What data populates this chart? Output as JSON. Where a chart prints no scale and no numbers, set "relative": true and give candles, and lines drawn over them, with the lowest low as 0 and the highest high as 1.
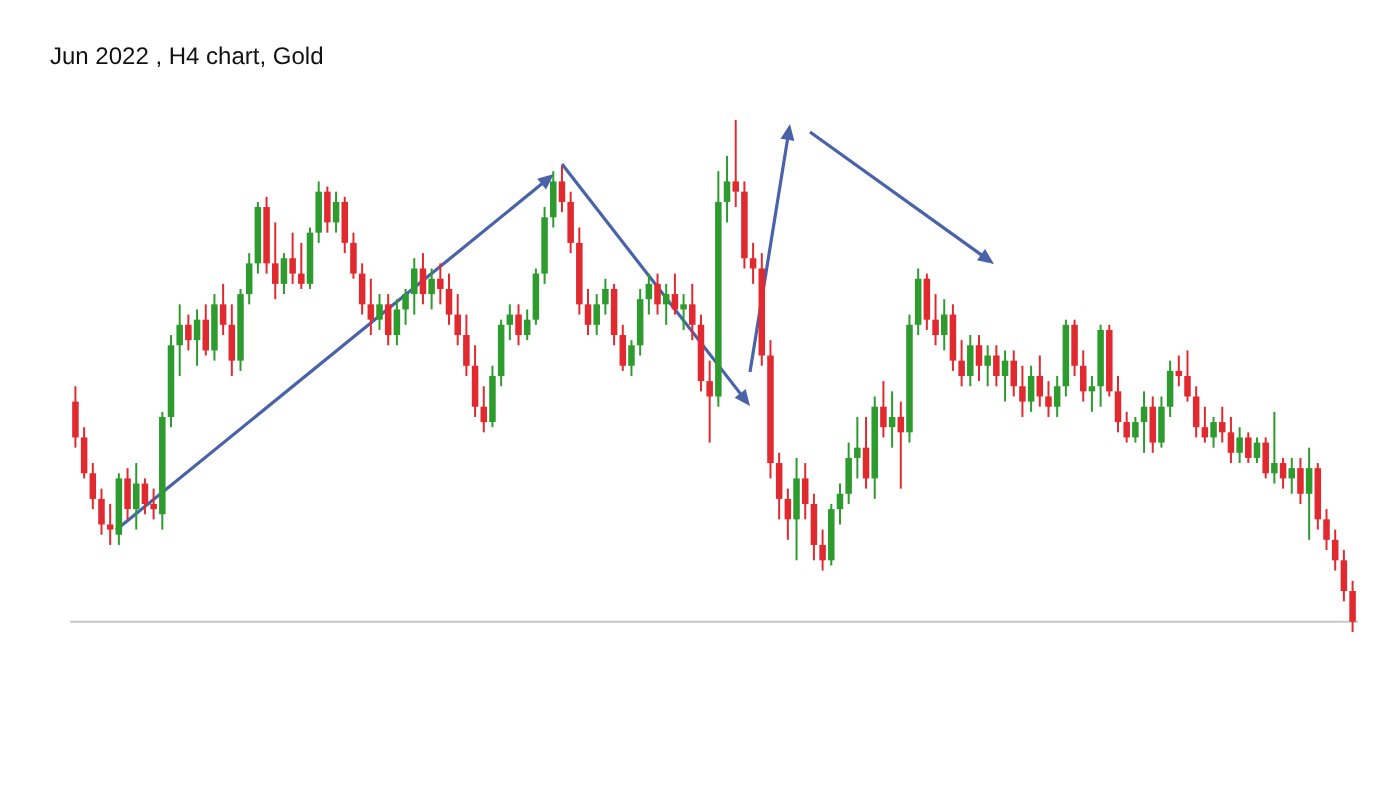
{
  "chart_data": {
    "type": "candlestick",
    "title": "Jun 2022 , H4 chart, Gold",
    "relative": true,
    "ref_lines": [
      {
        "axis": "y",
        "value": 0.02,
        "color": "#c8c8c8"
      }
    ],
    "categories": [
      null,
      null,
      null,
      null,
      null,
      null,
      null,
      null,
      null,
      null,
      null,
      null,
      null,
      null,
      null,
      null,
      null,
      null,
      null,
      null,
      null,
      null,
      null,
      null,
      null,
      null,
      null,
      null,
      null,
      null,
      null,
      null,
      null,
      null,
      null,
      null,
      null,
      null,
      null,
      null,
      null,
      null,
      null,
      null,
      null,
      null,
      null,
      null,
      null,
      null,
      null,
      null,
      null,
      null,
      null,
      null,
      null,
      null,
      null,
      null,
      null,
      null,
      null,
      null,
      null,
      null,
      null,
      null,
      null,
      null,
      null,
      null,
      null,
      null,
      null,
      null,
      null,
      null,
      null,
      null,
      null,
      null,
      null,
      null,
      null,
      null,
      null,
      null,
      null,
      null,
      null,
      null,
      null,
      null,
      null,
      null,
      null,
      null,
      null,
      null,
      null,
      null,
      null,
      null,
      null,
      null,
      null,
      null,
      null,
      null,
      null,
      null,
      null,
      null,
      null,
      null,
      null,
      null,
      null,
      null,
      null,
      null,
      null,
      null,
      null,
      null,
      null,
      null,
      null,
      null,
      null,
      null,
      null,
      null,
      null,
      null,
      null,
      null,
      null,
      null,
      null,
      null,
      null,
      null,
      null,
      null,
      null,
      null
    ],
    "ohlc": [
      [
        0.45,
        0.48,
        0.36,
        0.38
      ],
      [
        0.38,
        0.4,
        0.3,
        0.31
      ],
      [
        0.31,
        0.33,
        0.24,
        0.26
      ],
      [
        0.26,
        0.28,
        0.19,
        0.21
      ],
      [
        0.21,
        0.25,
        0.17,
        0.2
      ],
      [
        0.19,
        0.31,
        0.17,
        0.3
      ],
      [
        0.3,
        0.32,
        0.22,
        0.24
      ],
      [
        0.24,
        0.33,
        0.2,
        0.29
      ],
      [
        0.29,
        0.3,
        0.23,
        0.25
      ],
      [
        0.25,
        0.28,
        0.22,
        0.24
      ],
      [
        0.23,
        0.43,
        0.2,
        0.42
      ],
      [
        0.42,
        0.58,
        0.4,
        0.56
      ],
      [
        0.56,
        0.64,
        0.5,
        0.6
      ],
      [
        0.6,
        0.62,
        0.55,
        0.57
      ],
      [
        0.57,
        0.63,
        0.52,
        0.61
      ],
      [
        0.61,
        0.64,
        0.54,
        0.55
      ],
      [
        0.55,
        0.66,
        0.53,
        0.64
      ],
      [
        0.64,
        0.68,
        0.58,
        0.6
      ],
      [
        0.6,
        0.64,
        0.5,
        0.53
      ],
      [
        0.53,
        0.67,
        0.51,
        0.66
      ],
      [
        0.66,
        0.74,
        0.64,
        0.72
      ],
      [
        0.72,
        0.84,
        0.7,
        0.83
      ],
      [
        0.83,
        0.85,
        0.7,
        0.72
      ],
      [
        0.72,
        0.8,
        0.65,
        0.68
      ],
      [
        0.68,
        0.74,
        0.66,
        0.73
      ],
      [
        0.73,
        0.78,
        0.68,
        0.7
      ],
      [
        0.7,
        0.76,
        0.67,
        0.68
      ],
      [
        0.68,
        0.79,
        0.67,
        0.78
      ],
      [
        0.78,
        0.88,
        0.76,
        0.86
      ],
      [
        0.86,
        0.87,
        0.78,
        0.8
      ],
      [
        0.8,
        0.86,
        0.78,
        0.84
      ],
      [
        0.84,
        0.85,
        0.74,
        0.76
      ],
      [
        0.76,
        0.78,
        0.69,
        0.7
      ],
      [
        0.7,
        0.72,
        0.62,
        0.64
      ],
      [
        0.64,
        0.69,
        0.58,
        0.61
      ],
      [
        0.61,
        0.66,
        0.59,
        0.64
      ],
      [
        0.64,
        0.66,
        0.56,
        0.58
      ],
      [
        0.58,
        0.65,
        0.56,
        0.63
      ],
      [
        0.63,
        0.67,
        0.6,
        0.66
      ],
      [
        0.66,
        0.73,
        0.62,
        0.71
      ],
      [
        0.71,
        0.74,
        0.64,
        0.66
      ],
      [
        0.66,
        0.71,
        0.63,
        0.69
      ],
      [
        0.69,
        0.72,
        0.64,
        0.67
      ],
      [
        0.67,
        0.7,
        0.6,
        0.62
      ],
      [
        0.62,
        0.66,
        0.56,
        0.58
      ],
      [
        0.58,
        0.62,
        0.5,
        0.52
      ],
      [
        0.52,
        0.56,
        0.42,
        0.44
      ],
      [
        0.44,
        0.48,
        0.39,
        0.41
      ],
      [
        0.41,
        0.52,
        0.4,
        0.5
      ],
      [
        0.5,
        0.61,
        0.48,
        0.6
      ],
      [
        0.6,
        0.64,
        0.57,
        0.62
      ],
      [
        0.62,
        0.64,
        0.56,
        0.58
      ],
      [
        0.58,
        0.63,
        0.57,
        0.61
      ],
      [
        0.61,
        0.71,
        0.6,
        0.7
      ],
      [
        0.7,
        0.83,
        0.68,
        0.81
      ],
      [
        0.81,
        0.9,
        0.79,
        0.88
      ],
      [
        0.88,
        0.91,
        0.82,
        0.84
      ],
      [
        0.84,
        0.86,
        0.74,
        0.76
      ],
      [
        0.76,
        0.79,
        0.62,
        0.64
      ],
      [
        0.64,
        0.67,
        0.58,
        0.6
      ],
      [
        0.6,
        0.66,
        0.58,
        0.64
      ],
      [
        0.64,
        0.69,
        0.62,
        0.67
      ],
      [
        0.67,
        0.68,
        0.56,
        0.58
      ],
      [
        0.58,
        0.6,
        0.51,
        0.52
      ],
      [
        0.52,
        0.57,
        0.5,
        0.56
      ],
      [
        0.56,
        0.67,
        0.54,
        0.65
      ],
      [
        0.65,
        0.7,
        0.62,
        0.68
      ],
      [
        0.68,
        0.7,
        0.62,
        0.64
      ],
      [
        0.64,
        0.68,
        0.6,
        0.66
      ],
      [
        0.66,
        0.7,
        0.62,
        0.63
      ],
      [
        0.63,
        0.66,
        0.59,
        0.64
      ],
      [
        0.64,
        0.68,
        0.57,
        0.6
      ],
      [
        0.6,
        0.62,
        0.47,
        0.49
      ],
      [
        0.49,
        0.53,
        0.37,
        0.46
      ],
      [
        0.46,
        0.9,
        0.44,
        0.84
      ],
      [
        0.84,
        0.93,
        0.8,
        0.88
      ],
      [
        0.88,
        1.0,
        0.83,
        0.86
      ],
      [
        0.86,
        0.88,
        0.71,
        0.73
      ],
      [
        0.73,
        0.76,
        0.68,
        0.71
      ],
      [
        0.71,
        0.74,
        0.52,
        0.54
      ],
      [
        0.54,
        0.57,
        0.3,
        0.33
      ],
      [
        0.33,
        0.35,
        0.22,
        0.26
      ],
      [
        0.26,
        0.28,
        0.18,
        0.22
      ],
      [
        0.22,
        0.34,
        0.14,
        0.3
      ],
      [
        0.3,
        0.33,
        0.22,
        0.25
      ],
      [
        0.25,
        0.27,
        0.14,
        0.17
      ],
      [
        0.17,
        0.2,
        0.12,
        0.14
      ],
      [
        0.14,
        0.25,
        0.13,
        0.24
      ],
      [
        0.24,
        0.29,
        0.21,
        0.27
      ],
      [
        0.27,
        0.37,
        0.25,
        0.34
      ],
      [
        0.34,
        0.42,
        0.3,
        0.36
      ],
      [
        0.36,
        0.42,
        0.28,
        0.3
      ],
      [
        0.3,
        0.46,
        0.26,
        0.44
      ],
      [
        0.44,
        0.49,
        0.38,
        0.4
      ],
      [
        0.4,
        0.47,
        0.36,
        0.42
      ],
      [
        0.42,
        0.45,
        0.28,
        0.39
      ],
      [
        0.39,
        0.62,
        0.37,
        0.6
      ],
      [
        0.6,
        0.71,
        0.58,
        0.69
      ],
      [
        0.69,
        0.7,
        0.59,
        0.61
      ],
      [
        0.61,
        0.66,
        0.56,
        0.58
      ],
      [
        0.58,
        0.65,
        0.55,
        0.62
      ],
      [
        0.62,
        0.64,
        0.51,
        0.53
      ],
      [
        0.53,
        0.57,
        0.48,
        0.5
      ],
      [
        0.5,
        0.58,
        0.48,
        0.56
      ],
      [
        0.56,
        0.58,
        0.49,
        0.52
      ],
      [
        0.52,
        0.56,
        0.48,
        0.54
      ],
      [
        0.54,
        0.56,
        0.48,
        0.5
      ],
      [
        0.5,
        0.55,
        0.45,
        0.53
      ],
      [
        0.53,
        0.55,
        0.46,
        0.48
      ],
      [
        0.48,
        0.52,
        0.42,
        0.45
      ],
      [
        0.45,
        0.52,
        0.43,
        0.5
      ],
      [
        0.5,
        0.54,
        0.44,
        0.46
      ],
      [
        0.46,
        0.49,
        0.42,
        0.44
      ],
      [
        0.44,
        0.5,
        0.42,
        0.48
      ],
      [
        0.48,
        0.61,
        0.46,
        0.6
      ],
      [
        0.6,
        0.61,
        0.5,
        0.52
      ],
      [
        0.52,
        0.55,
        0.45,
        0.47
      ],
      [
        0.47,
        0.5,
        0.43,
        0.48
      ],
      [
        0.48,
        0.6,
        0.44,
        0.59
      ],
      [
        0.59,
        0.6,
        0.46,
        0.47
      ],
      [
        0.47,
        0.5,
        0.39,
        0.41
      ],
      [
        0.41,
        0.43,
        0.37,
        0.38
      ],
      [
        0.38,
        0.42,
        0.37,
        0.41
      ],
      [
        0.41,
        0.47,
        0.35,
        0.44
      ],
      [
        0.44,
        0.46,
        0.35,
        0.37
      ],
      [
        0.37,
        0.46,
        0.36,
        0.44
      ],
      [
        0.44,
        0.53,
        0.42,
        0.51
      ],
      [
        0.51,
        0.54,
        0.48,
        0.5
      ],
      [
        0.5,
        0.55,
        0.45,
        0.46
      ],
      [
        0.46,
        0.48,
        0.38,
        0.4
      ],
      [
        0.4,
        0.44,
        0.37,
        0.38
      ],
      [
        0.38,
        0.42,
        0.36,
        0.41
      ],
      [
        0.41,
        0.44,
        0.37,
        0.39
      ],
      [
        0.39,
        0.42,
        0.33,
        0.35
      ],
      [
        0.35,
        0.4,
        0.33,
        0.38
      ],
      [
        0.38,
        0.39,
        0.33,
        0.34
      ],
      [
        0.34,
        0.38,
        0.33,
        0.37
      ],
      [
        0.37,
        0.38,
        0.3,
        0.31
      ],
      [
        0.31,
        0.43,
        0.29,
        0.33
      ],
      [
        0.33,
        0.34,
        0.28,
        0.3
      ],
      [
        0.3,
        0.34,
        0.27,
        0.32
      ],
      [
        0.32,
        0.34,
        0.25,
        0.27
      ],
      [
        0.27,
        0.36,
        0.18,
        0.32
      ],
      [
        0.32,
        0.33,
        0.2,
        0.22
      ],
      [
        0.22,
        0.24,
        0.16,
        0.18
      ],
      [
        0.18,
        0.2,
        0.12,
        0.14
      ],
      [
        0.14,
        0.16,
        0.06,
        0.08
      ],
      [
        0.08,
        0.1,
        0.0,
        0.02
      ]
    ]
  }
}
